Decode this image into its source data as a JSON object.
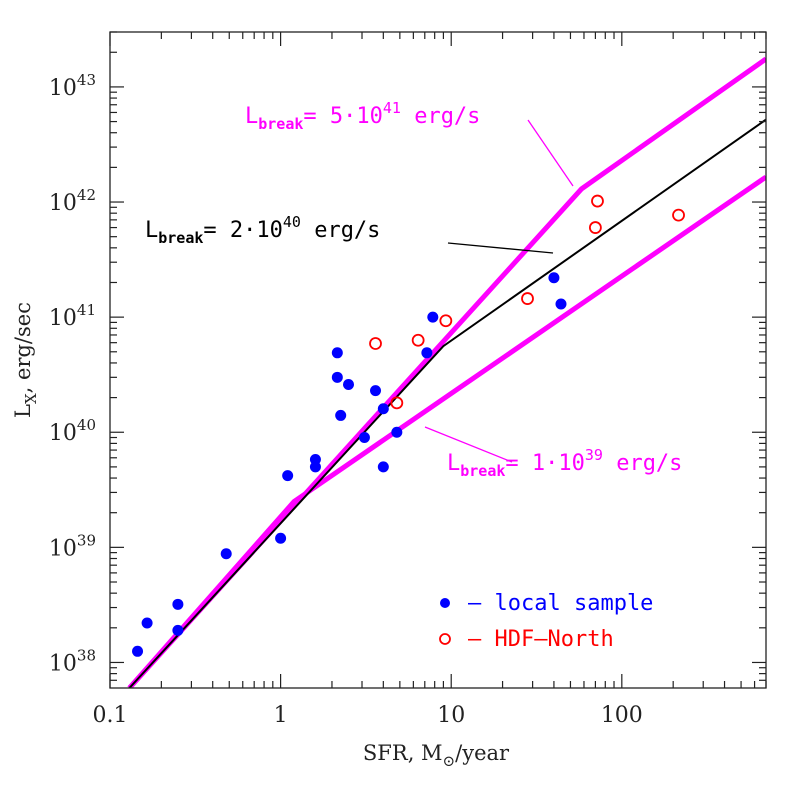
{
  "chart_data": {
    "type": "scatter",
    "xlabel": {
      "main": "SFR, M",
      "sub": "⊙",
      "rest": "/year"
    },
    "ylabel": {
      "main": "L",
      "sub": "X",
      "rest": ", erg/sec"
    },
    "x_scale": "log",
    "y_scale": "log",
    "xlim": [
      0.1,
      700
    ],
    "ylim": [
      6e+37,
      3e+43
    ],
    "x_ticks": [
      {
        "value": 0.1,
        "label": "0.1"
      },
      {
        "value": 1,
        "label": "1"
      },
      {
        "value": 10,
        "label": "10"
      },
      {
        "value": 100,
        "label": "100"
      }
    ],
    "y_ticks": [
      {
        "value": 1e+38,
        "base": "10",
        "exp": "38"
      },
      {
        "value": 1e+39,
        "base": "10",
        "exp": "39"
      },
      {
        "value": 1e+40,
        "base": "10",
        "exp": "40"
      },
      {
        "value": 1e+41,
        "base": "10",
        "exp": "41"
      },
      {
        "value": 1e+42,
        "base": "10",
        "exp": "42"
      },
      {
        "value": 1e+43,
        "base": "10",
        "exp": "43"
      }
    ],
    "grid": false,
    "legend_position": "bottom-right",
    "series": [
      {
        "name": "local sample",
        "legend_label": "– local sample",
        "marker": "filled-circle",
        "color": "#0000ff",
        "points": [
          {
            "x": 0.145,
            "y": 1.25e+38
          },
          {
            "x": 0.165,
            "y": 2.2e+38
          },
          {
            "x": 0.25,
            "y": 3.2e+38
          },
          {
            "x": 0.25,
            "y": 1.9e+38
          },
          {
            "x": 0.48,
            "y": 8.8e+38
          },
          {
            "x": 1.0,
            "y": 1.2e+39
          },
          {
            "x": 1.1,
            "y": 4.2e+39
          },
          {
            "x": 1.6,
            "y": 5.8e+39
          },
          {
            "x": 1.6,
            "y": 5e+39
          },
          {
            "x": 2.15,
            "y": 4.9e+40
          },
          {
            "x": 2.15,
            "y": 3e+40
          },
          {
            "x": 2.25,
            "y": 1.4e+40
          },
          {
            "x": 2.5,
            "y": 2.6e+40
          },
          {
            "x": 3.1,
            "y": 9e+39
          },
          {
            "x": 3.6,
            "y": 2.3e+40
          },
          {
            "x": 4.0,
            "y": 1.6e+40
          },
          {
            "x": 4.0,
            "y": 5e+39
          },
          {
            "x": 4.8,
            "y": 1e+40
          },
          {
            "x": 7.2,
            "y": 4.9e+40
          },
          {
            "x": 7.8,
            "y": 1e+41
          },
          {
            "x": 40,
            "y": 2.2e+41
          },
          {
            "x": 44,
            "y": 1.3e+41
          }
        ]
      },
      {
        "name": "HDF-North",
        "legend_label": "– HDF–North",
        "marker": "open-circle",
        "color": "#ff0000",
        "points": [
          {
            "x": 3.6,
            "y": 5.9e+40
          },
          {
            "x": 4.8,
            "y": 1.8e+40
          },
          {
            "x": 6.4,
            "y": 6.3e+40
          },
          {
            "x": 9.3,
            "y": 9.3e+40
          },
          {
            "x": 28,
            "y": 1.45e+41
          },
          {
            "x": 70,
            "y": 6e+41
          },
          {
            "x": 72,
            "y": 1.02e+42
          },
          {
            "x": 215,
            "y": 7.7e+41
          }
        ]
      }
    ],
    "curves": [
      {
        "id": "break-2e40",
        "color": "#000000",
        "line_width": 2,
        "points": [
          {
            "x": 0.13,
            "y": 6e+37
          },
          {
            "x": 9.0,
            "y": 5.6e+40
          },
          {
            "x": 700,
            "y": 5.2e+42
          }
        ],
        "label": {
          "prefix": "L",
          "sub": "break",
          "body": "= 2·10",
          "exp": "40",
          "tail": " erg/s"
        },
        "label_color": "#000000"
      },
      {
        "id": "break-5e41",
        "color": "#ff00ff",
        "line_width": 5,
        "points": [
          {
            "x": 0.13,
            "y": 6e+37
          },
          {
            "x": 58,
            "y": 1.3e+42
          },
          {
            "x": 700,
            "y": 1.75e+43
          }
        ],
        "label": {
          "prefix": "L",
          "sub": "break",
          "body": "= 5·10",
          "exp": "41",
          "tail": " erg/s"
        },
        "label_color": "#ff00ff"
      },
      {
        "id": "break-1e39",
        "color": "#ff00ff",
        "line_width": 5,
        "points": [
          {
            "x": 0.13,
            "y": 6e+37
          },
          {
            "x": 1.2,
            "y": 2.5e+39
          },
          {
            "x": 700,
            "y": 1.65e+42
          }
        ],
        "label": {
          "prefix": "L",
          "sub": "break",
          "body": "= 1·10",
          "exp": "39",
          "tail": " erg/s"
        },
        "label_color": "#ff00ff"
      }
    ]
  }
}
